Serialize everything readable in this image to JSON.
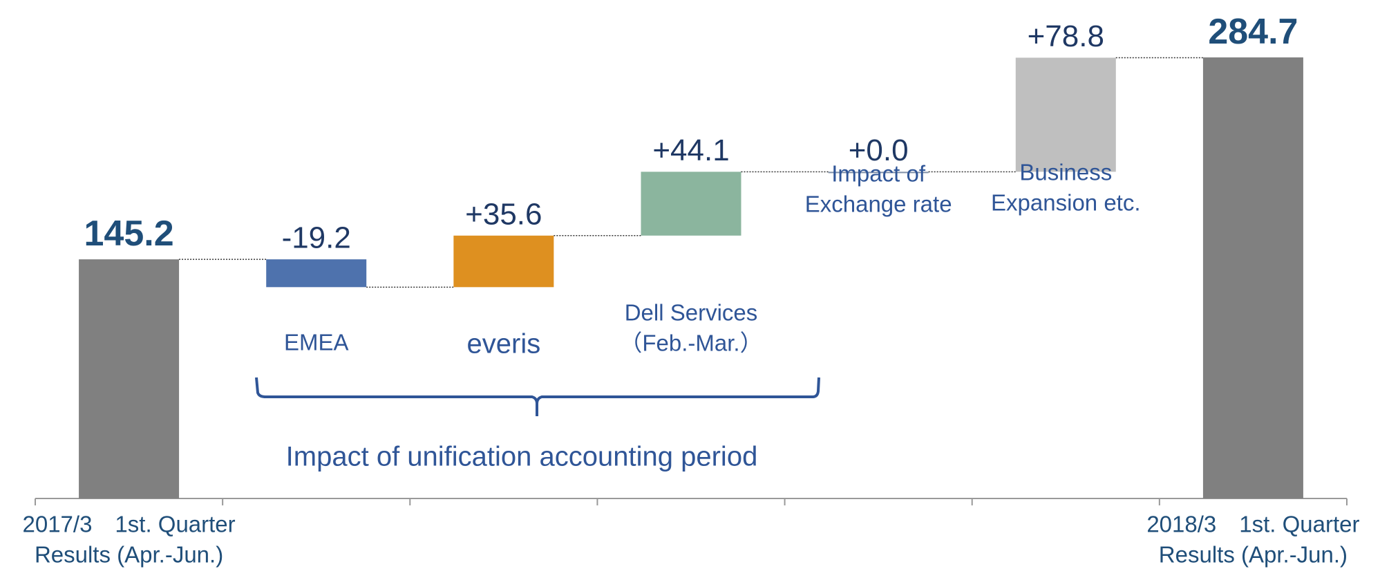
{
  "chart_data": {
    "type": "waterfall",
    "categories": [
      [
        "2017/3　1st. Quarter",
        "Results (Apr.-Jun.)"
      ],
      [
        "EMEA"
      ],
      [
        "everis"
      ],
      [
        "Dell Services",
        "（Feb.-Mar.）"
      ],
      [
        "Impact of",
        "Exchange rate"
      ],
      [
        "Business",
        "Expansion etc."
      ],
      [
        "2018/3　1st. Quarter",
        "Results (Apr.-Jun.)"
      ]
    ],
    "values": [
      145.2,
      -19.2,
      35.6,
      44.1,
      0.0,
      78.8,
      284.7
    ],
    "value_labels": [
      "145.2",
      "-19.2",
      "+35.6",
      "+44.1",
      "+0.0",
      "+78.8",
      "284.7"
    ],
    "is_total": [
      true,
      false,
      false,
      false,
      false,
      false,
      true
    ],
    "colors": [
      "#808080",
      "#4e72ad",
      "#de9020",
      "#8bb59e",
      "#7f8fa8",
      "#bfbfbf",
      "#808080"
    ],
    "ylim": [
      -20,
      300
    ],
    "annotation": "Impact of unification accounting period"
  }
}
